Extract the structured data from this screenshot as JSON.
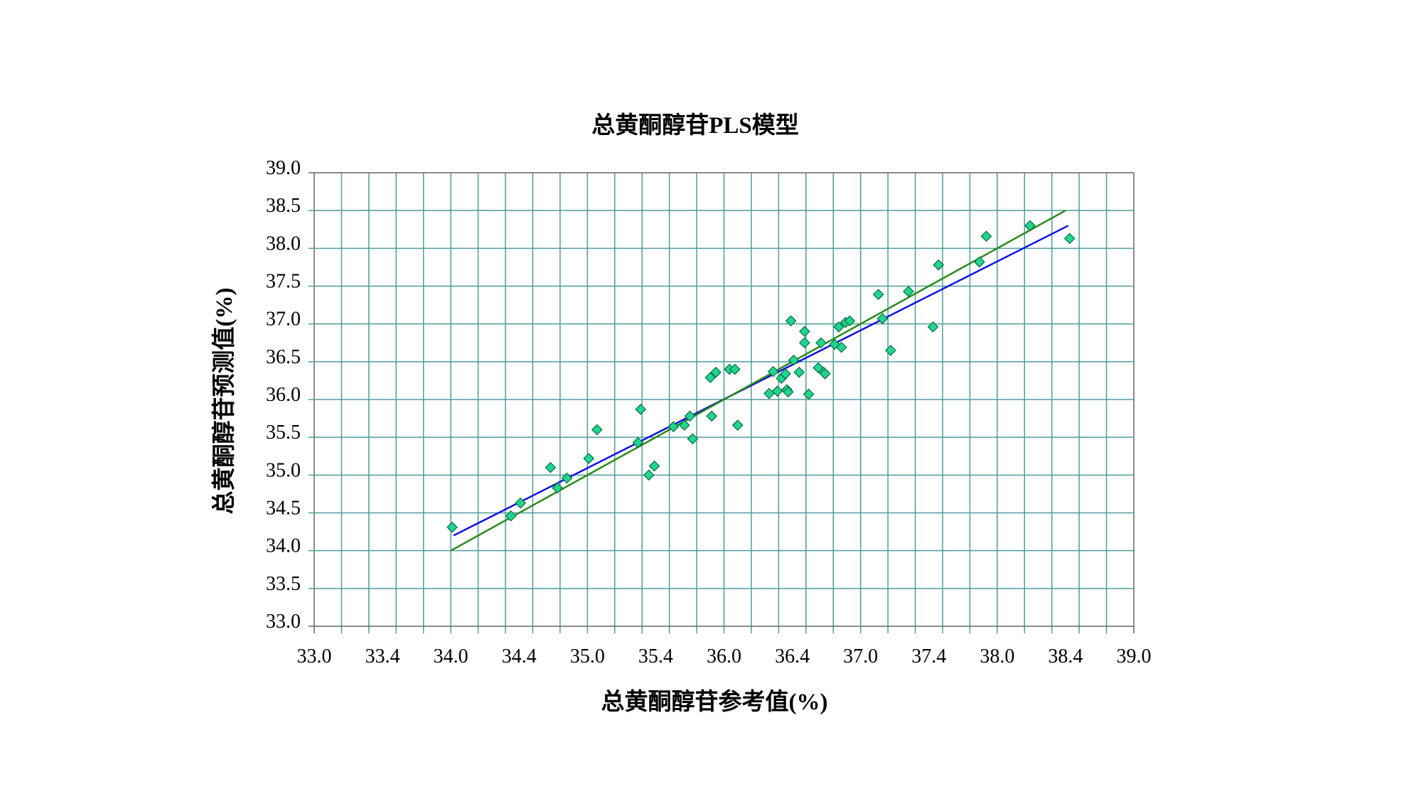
{
  "chart_data": {
    "type": "scatter",
    "title": "总黄酮醇苷PLS模型",
    "xlabel": "总黄酮醇苷参考值(%)",
    "ylabel": "总黄酮醇苷预测值(%)",
    "xlim": [
      33.0,
      39.0
    ],
    "ylim": [
      33.0,
      39.0
    ],
    "x_tick_labels": [
      "33.0",
      "33.4",
      "34.0",
      "34.4",
      "35.0",
      "35.4",
      "36.0",
      "36.4",
      "37.0",
      "37.4",
      "38.0",
      "38.4",
      "39.0"
    ],
    "y_tick_labels": [
      "33.0",
      "33.5",
      "34.0",
      "34.5",
      "35.0",
      "35.5",
      "36.0",
      "36.5",
      "37.0",
      "37.5",
      "38.0",
      "38.5",
      "39.0"
    ],
    "grid": true,
    "legend": "none",
    "colors": {
      "points": "#1fd68c",
      "point_outline": "#0a6a45",
      "fit_line": "#1010e0",
      "ideal_line": "#2a8a1a",
      "grid": "#4e9c9e"
    },
    "points": [
      [
        34.01,
        34.31
      ],
      [
        34.44,
        34.46
      ],
      [
        34.51,
        34.63
      ],
      [
        34.73,
        35.1
      ],
      [
        34.78,
        34.83
      ],
      [
        34.85,
        34.96
      ],
      [
        35.01,
        35.22
      ],
      [
        35.07,
        35.6
      ],
      [
        35.37,
        35.43
      ],
      [
        35.39,
        35.87
      ],
      [
        35.45,
        35.0
      ],
      [
        35.49,
        35.12
      ],
      [
        35.63,
        35.64
      ],
      [
        35.71,
        35.66
      ],
      [
        35.75,
        35.78
      ],
      [
        35.77,
        35.48
      ],
      [
        35.9,
        36.29
      ],
      [
        35.91,
        35.78
      ],
      [
        35.94,
        36.36
      ],
      [
        36.04,
        36.4
      ],
      [
        36.08,
        36.4
      ],
      [
        36.1,
        35.66
      ],
      [
        36.33,
        36.08
      ],
      [
        36.36,
        36.37
      ],
      [
        36.39,
        36.11
      ],
      [
        36.42,
        36.28
      ],
      [
        36.45,
        36.34
      ],
      [
        36.46,
        36.13
      ],
      [
        36.47,
        36.1
      ],
      [
        36.49,
        37.04
      ],
      [
        36.51,
        36.52
      ],
      [
        36.55,
        36.36
      ],
      [
        36.59,
        36.75
      ],
      [
        36.59,
        36.9
      ],
      [
        36.62,
        36.07
      ],
      [
        36.69,
        36.42
      ],
      [
        36.71,
        36.75
      ],
      [
        36.73,
        36.36
      ],
      [
        36.74,
        36.34
      ],
      [
        36.81,
        36.73
      ],
      [
        36.84,
        36.96
      ],
      [
        36.86,
        36.69
      ],
      [
        36.89,
        37.02
      ],
      [
        36.92,
        37.04
      ],
      [
        37.13,
        37.39
      ],
      [
        37.16,
        37.07
      ],
      [
        37.22,
        36.65
      ],
      [
        37.35,
        37.43
      ],
      [
        37.53,
        36.96
      ],
      [
        37.57,
        37.78
      ],
      [
        37.87,
        37.82
      ],
      [
        37.92,
        38.16
      ],
      [
        38.24,
        38.3
      ],
      [
        38.53,
        38.13
      ]
    ],
    "lines": [
      {
        "kind": "fit",
        "from": [
          34.02,
          34.2
        ],
        "to": [
          38.52,
          38.3
        ]
      },
      {
        "kind": "ideal",
        "from": [
          34.0,
          34.0
        ],
        "to": [
          38.5,
          38.5
        ]
      }
    ]
  }
}
